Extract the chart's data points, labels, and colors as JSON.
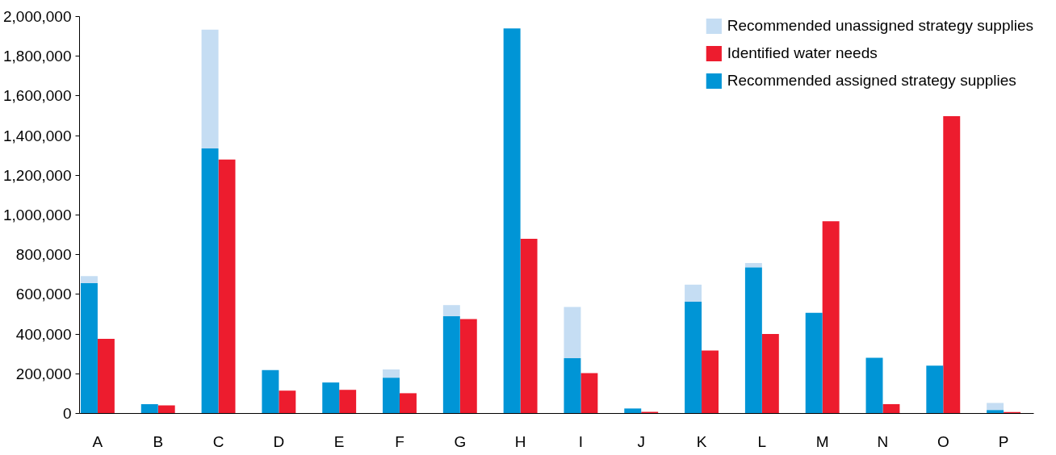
{
  "chart_data": {
    "type": "bar",
    "categories": [
      "A",
      "B",
      "C",
      "D",
      "E",
      "F",
      "G",
      "H",
      "I",
      "J",
      "K",
      "L",
      "M",
      "N",
      "O",
      "P"
    ],
    "series": [
      {
        "name": "Recommended unassigned strategy supplies",
        "color": "#c5ddf3",
        "values": [
          36000,
          null,
          599000,
          null,
          null,
          42000,
          56000,
          null,
          259000,
          null,
          86000,
          22000,
          null,
          null,
          null,
          36000
        ],
        "base": [
          656000,
          null,
          1335000,
          null,
          null,
          180000,
          490000,
          null,
          278000,
          null,
          563000,
          736000,
          null,
          null,
          null,
          17000
        ]
      },
      {
        "name": "Identified water needs",
        "color": "#ed1c2e",
        "values": [
          376000,
          41000,
          1279000,
          115000,
          119000,
          102000,
          476000,
          880000,
          203000,
          8000,
          317000,
          400000,
          969000,
          47000,
          1498000,
          7000
        ]
      },
      {
        "name": "Recommended assigned strategy supplies",
        "color": "#0095d6",
        "values": [
          656000,
          47000,
          1335000,
          219000,
          156000,
          180000,
          490000,
          1940000,
          278000,
          25000,
          563000,
          736000,
          507000,
          280000,
          241000,
          17000
        ]
      }
    ],
    "ylim": [
      0,
      2000000
    ],
    "yticks": [
      {
        "value": 0,
        "label": "0"
      },
      {
        "value": 200000,
        "label": "200,000"
      },
      {
        "value": 400000,
        "label": "400,000"
      },
      {
        "value": 600000,
        "label": "600,000"
      },
      {
        "value": 800000,
        "label": "800,000"
      },
      {
        "value": 1000000,
        "label": "1,000,000"
      },
      {
        "value": 1200000,
        "label": "1,200,000"
      },
      {
        "value": 1400000,
        "label": "1,400,000"
      },
      {
        "value": 1600000,
        "label": "1,600,000"
      },
      {
        "value": 1800000,
        "label": "1,800,000"
      },
      {
        "value": 2000000,
        "label": "2,000,000"
      }
    ],
    "legend": "top right"
  }
}
